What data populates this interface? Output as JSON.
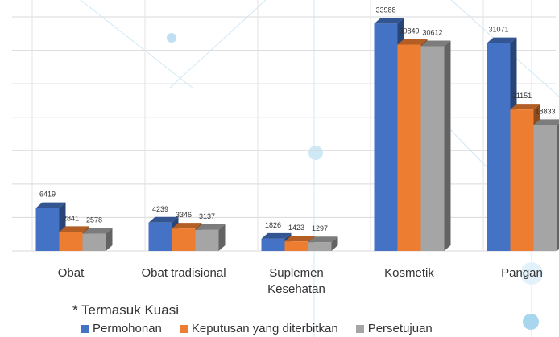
{
  "chart_data": {
    "type": "bar3d",
    "categories": [
      "Obat",
      "Obat tradisional",
      "Suplemen Kesehatan",
      "Kosmetik",
      "Pangan"
    ],
    "series": [
      {
        "name": "Permohonan",
        "color": "#4472c4",
        "values": [
          6419,
          4239,
          1826,
          33988,
          31071
        ]
      },
      {
        "name": "Keputusan yang diterbitkan",
        "color": "#ed7d31",
        "values": [
          2841,
          3346,
          1423,
          30849,
          21151
        ]
      },
      {
        "name": "Persetujuan",
        "color": "#a5a5a5",
        "values": [
          2578,
          3137,
          1297,
          30612,
          18833
        ]
      }
    ],
    "ylim": [
      0,
      35000
    ],
    "yticks": [
      0,
      5000,
      10000,
      15000,
      20000,
      25000,
      30000,
      35000
    ],
    "grid": true,
    "note": "* Termasuk Kuasi"
  }
}
